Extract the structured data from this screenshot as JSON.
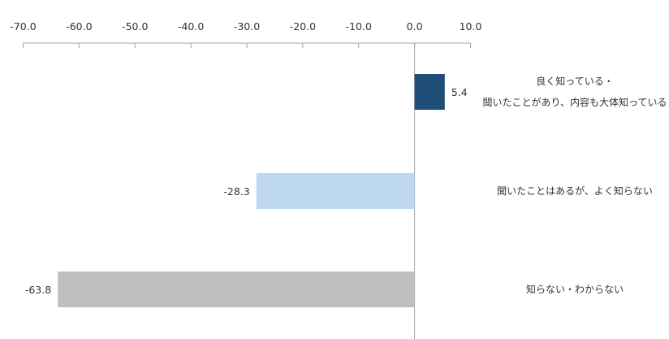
{
  "chart_data": {
    "type": "bar",
    "orientation": "horizontal",
    "title": "",
    "xlabel": "",
    "ylabel": "",
    "xlim": [
      -70,
      10
    ],
    "x_ticks": [
      -70,
      -60,
      -50,
      -40,
      -30,
      -20,
      -10,
      0,
      10
    ],
    "x_tick_labels": [
      "-70.0",
      "-60.0",
      "-50.0",
      "-40.0",
      "-30.0",
      "-20.0",
      "-10.0",
      "0.0",
      "10.0"
    ],
    "axis_position": "top",
    "grid": false,
    "categories": [
      {
        "lines": [
          "良く知っている・",
          "聞いたことがあり、内容も大体知っている"
        ]
      },
      {
        "lines": [
          "聞いたことはあるが、よく知らない"
        ]
      },
      {
        "lines": [
          "知らない・わからない"
        ]
      }
    ],
    "values": [
      5.4,
      -28.3,
      -63.8
    ],
    "value_labels": [
      "5.4",
      "-28.3",
      "-63.8"
    ],
    "colors": [
      "#1f4e79",
      "#bdd7ee",
      "#bfbfbf"
    ],
    "axis_color": "#a6a6a6"
  }
}
